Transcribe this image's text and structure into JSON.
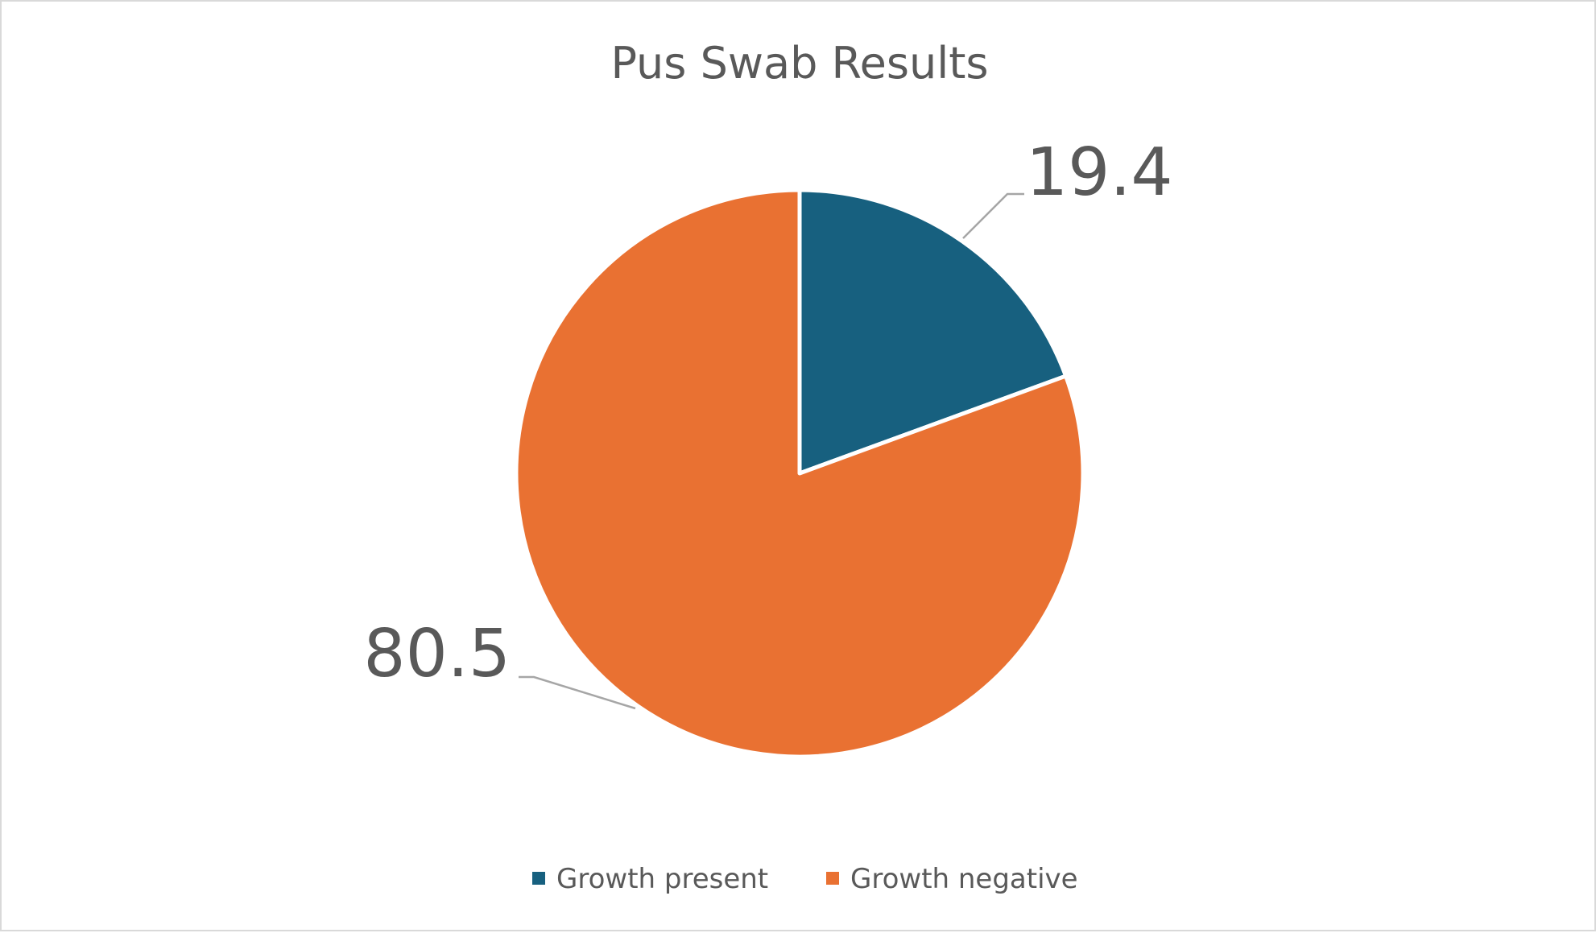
{
  "chart_data": {
    "type": "pie",
    "title": "Pus Swab Results",
    "categories": [
      "Growth present",
      "Growth negative"
    ],
    "values": [
      19.4,
      80.5
    ],
    "data_labels": [
      "19.4",
      "80.5"
    ],
    "colors": [
      "#17607f",
      "#e97132"
    ],
    "legend_position": "bottom",
    "start_angle": "12 o'clock",
    "direction": "clockwise"
  }
}
